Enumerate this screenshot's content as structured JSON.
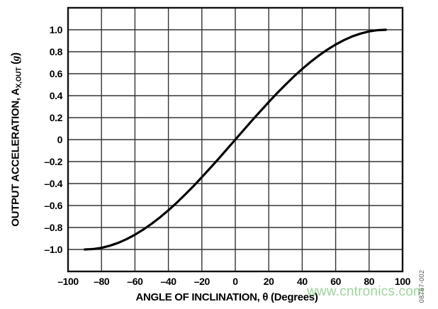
{
  "figure": {
    "watermark": "www.cntronics.com",
    "figure_code": "08767-002"
  },
  "colors": {
    "background": "#ffffff",
    "text": "#000000",
    "grid_line": "#333333",
    "plot_border": "#111111",
    "curve": "#000000",
    "watermark": "#9cd49c",
    "figure_code": "#4f4f4f"
  },
  "chart_data": {
    "type": "line",
    "title": "",
    "xlabel": "ANGLE OF INCLINATION, θ (Degrees)",
    "ylabel": "OUTPUT ACCELERATION, AX,OUT (g)",
    "ylabel_parts": {
      "main": "OUTPUT ACCELERATION, A",
      "sub": "X,OUT",
      "unit_open": " (",
      "unit_g": "g",
      "unit_close": ")"
    },
    "xlim": [
      -100,
      100
    ],
    "ylim": [
      -1.2,
      1.2
    ],
    "x_grid_step": 20,
    "y_grid_step": 0.2,
    "grid": true,
    "legend": false,
    "x_ticks": {
      "values": [
        -100,
        -80,
        -60,
        -40,
        -20,
        0,
        20,
        40,
        60,
        80,
        100
      ],
      "labels": [
        "–100",
        "–80",
        "–60",
        "–40",
        "–20",
        "0",
        "20",
        "40",
        "60",
        "80",
        "100"
      ]
    },
    "y_ticks": {
      "values": [
        1.0,
        0.8,
        0.6,
        0.4,
        0.2,
        0,
        -0.2,
        -0.4,
        -0.6,
        -0.8,
        -1.0
      ],
      "labels": [
        "1.0",
        "0.8",
        "0.6",
        "0.4",
        "0.2",
        "0",
        "–0.2",
        "–0.4",
        "–0.6",
        "–0.8",
        "–1.0"
      ]
    },
    "series": [
      {
        "name": "AX,OUT",
        "x": [
          -90,
          -85,
          -80,
          -75,
          -70,
          -65,
          -60,
          -55,
          -50,
          -45,
          -40,
          -35,
          -30,
          -25,
          -20,
          -15,
          -10,
          -5,
          0,
          5,
          10,
          15,
          20,
          25,
          30,
          35,
          40,
          45,
          50,
          55,
          60,
          65,
          70,
          75,
          80,
          85,
          90
        ],
        "y": [
          -1.0,
          -0.996,
          -0.985,
          -0.966,
          -0.94,
          -0.906,
          -0.866,
          -0.819,
          -0.766,
          -0.707,
          -0.643,
          -0.574,
          -0.5,
          -0.423,
          -0.342,
          -0.259,
          -0.174,
          -0.087,
          0,
          0.087,
          0.174,
          0.259,
          0.342,
          0.423,
          0.5,
          0.574,
          0.643,
          0.707,
          0.766,
          0.819,
          0.866,
          0.906,
          0.94,
          0.966,
          0.985,
          0.996,
          1.0
        ]
      }
    ]
  }
}
